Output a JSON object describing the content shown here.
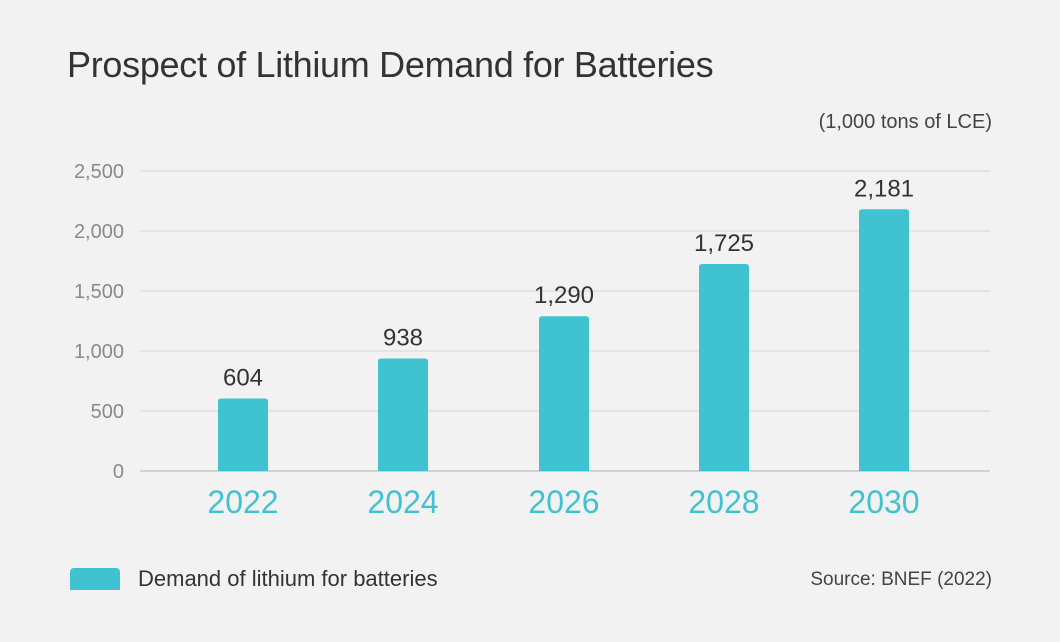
{
  "chart_data": {
    "type": "bar",
    "title": "Prospect of Lithium Demand for Batteries",
    "unit_label": "(1,000 tons of LCE)",
    "categories": [
      "2022",
      "2024",
      "2026",
      "2028",
      "2030"
    ],
    "series": [
      {
        "name": "Demand of lithium for batteries",
        "values": [
          604,
          938,
          1290,
          1725,
          2181
        ],
        "value_labels": [
          "604",
          "938",
          "1,290",
          "1,725",
          "2,181"
        ]
      }
    ],
    "ylim": [
      0,
      2500
    ],
    "yticks": [
      0,
      500,
      1000,
      1500,
      2000,
      2500
    ],
    "ytick_labels": [
      "0",
      "500",
      "1,000",
      "1,500",
      "2,000",
      "2,500"
    ],
    "grid": true,
    "legend_position": "bottom-left",
    "source": "Source: BNEF (2022)"
  },
  "colors": {
    "bar": "#3fc3d0",
    "category_label": "#3fc3d0",
    "gridline": "#d6d6d6",
    "tick_label": "#8a8a8a",
    "text": "#333333",
    "background": "#f2f2f2"
  }
}
